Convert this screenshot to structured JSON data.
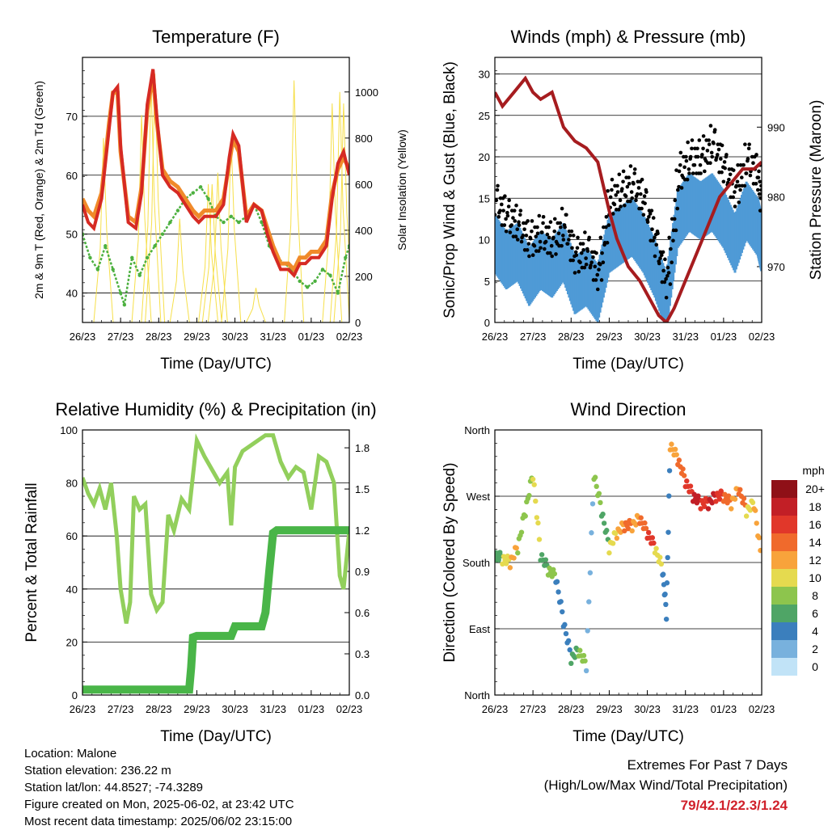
{
  "colors": {
    "temp2m": "#d62a23",
    "temp9m": "#f08a2a",
    "dewpoint": "#4cb03f",
    "solar": "#f6df4a",
    "wind": "#4f9ad6",
    "gust": "#000000",
    "pressure": "#a61c1f",
    "rh": "#92cf5c",
    "precip": "#49b548",
    "grid": "#000000"
  },
  "chart_data": [
    {
      "type": "line",
      "title": "Temperature (F)",
      "xlabel": "Time (Day/UTC)",
      "ylabel": "2m & 9m T (Red, Orange) & 2m Td (Green)",
      "ylabel_right": "Solar Insolation (Yellow)",
      "x_ticks": [
        "26/23",
        "27/23",
        "28/23",
        "29/23",
        "30/23",
        "31/23",
        "01/23",
        "02/23"
      ],
      "ylim": [
        35,
        80
      ],
      "y_ticks": [
        40,
        50,
        60,
        70
      ],
      "ylim_right": [
        0,
        1150
      ],
      "y_ticks_right": [
        0,
        200,
        400,
        600,
        800,
        1000
      ],
      "grid": true,
      "series": [
        {
          "name": "2m T",
          "color_key": "temp2m",
          "x": [
            0,
            0.15,
            0.3,
            0.5,
            0.7,
            0.8,
            0.92,
            1.0,
            1.2,
            1.4,
            1.55,
            1.7,
            1.85,
            1.95,
            2.1,
            2.3,
            2.5,
            2.7,
            2.9,
            3.05,
            3.2,
            3.5,
            3.7,
            3.85,
            3.95,
            4.1,
            4.3,
            4.5,
            4.7,
            4.85,
            5.0,
            5.2,
            5.4,
            5.55,
            5.7,
            5.85,
            6.0,
            6.2,
            6.4,
            6.55,
            6.7,
            6.85,
            7.0
          ],
          "y": [
            55,
            52,
            51,
            56,
            68,
            74,
            75,
            65,
            52,
            51,
            57,
            72,
            78,
            70,
            60,
            58,
            57,
            55,
            53,
            52,
            53,
            53,
            55,
            63,
            67,
            65,
            52,
            55,
            54,
            50,
            47,
            44,
            44,
            43,
            45,
            45,
            46,
            46,
            48,
            56,
            62,
            64,
            60
          ]
        },
        {
          "name": "9m T",
          "color_key": "temp9m",
          "x": [
            0,
            0.15,
            0.3,
            0.5,
            0.7,
            0.8,
            0.92,
            1.0,
            1.2,
            1.4,
            1.55,
            1.7,
            1.85,
            1.95,
            2.1,
            2.3,
            2.5,
            2.7,
            2.9,
            3.05,
            3.2,
            3.5,
            3.7,
            3.85,
            3.95,
            4.1,
            4.3,
            4.5,
            4.7,
            4.85,
            5.0,
            5.2,
            5.4,
            5.55,
            5.7,
            5.85,
            6.0,
            6.2,
            6.4,
            6.55,
            6.7,
            6.85,
            7.0
          ],
          "y": [
            56,
            54,
            53,
            57,
            69,
            74,
            74,
            64,
            53,
            52,
            58,
            71,
            77,
            69,
            61,
            59,
            58,
            56,
            54,
            53,
            54,
            54,
            56,
            62,
            66,
            64,
            53,
            55,
            54,
            51,
            48,
            45,
            45,
            44,
            46,
            46,
            47,
            47,
            49,
            57,
            61,
            63,
            61
          ]
        },
        {
          "name": "2m Td",
          "color_key": "dewpoint",
          "x": [
            0,
            0.2,
            0.4,
            0.6,
            0.8,
            1.0,
            1.1,
            1.3,
            1.5,
            1.7,
            1.9,
            2.1,
            2.3,
            2.5,
            2.7,
            2.9,
            3.1,
            3.3,
            3.5,
            3.7,
            3.9,
            4.1,
            4.3,
            4.5,
            4.7,
            4.9,
            5.1,
            5.3,
            5.5,
            5.7,
            5.9,
            6.1,
            6.3,
            6.5,
            6.7,
            6.9,
            7.0
          ],
          "y": [
            50,
            46,
            44,
            48,
            44,
            40,
            38,
            46,
            43,
            46,
            48,
            50,
            52,
            54,
            56,
            57,
            58,
            56,
            53,
            52,
            53,
            52,
            53,
            55,
            52,
            48,
            46,
            45,
            44,
            42,
            41,
            42,
            44,
            43,
            40,
            46,
            48
          ]
        },
        {
          "name": "Solar",
          "color_key": "solar",
          "axis": "right",
          "spikes": [
            {
              "x": 0.55,
              "y": 800
            },
            {
              "x": 1.55,
              "y": 900
            },
            {
              "x": 2.55,
              "y": 450
            },
            {
              "x": 3.55,
              "y": 650
            },
            {
              "x": 4.55,
              "y": 150
            },
            {
              "x": 5.55,
              "y": 1050
            },
            {
              "x": 6.55,
              "y": 950
            }
          ],
          "extra": [
            {
              "x": 1.8,
              "y": 1050
            },
            {
              "x": 1.9,
              "y": 1080
            },
            {
              "x": 3.4,
              "y": 600
            },
            {
              "x": 3.9,
              "y": 800
            },
            {
              "x": 3.3,
              "y": 600
            },
            {
              "x": 6.85,
              "y": 950
            },
            {
              "x": 6.75,
              "y": 1000
            }
          ]
        }
      ]
    },
    {
      "type": "scatter",
      "title": "Winds (mph) & Pressure (mb)",
      "xlabel": "Time (Day/UTC)",
      "ylabel": "Sonic/Prop Wind & Gust (Blue, Black)",
      "ylabel_right": "Station Pressure (Maroon)",
      "x_ticks": [
        "26/23",
        "27/23",
        "28/23",
        "29/23",
        "30/23",
        "31/23",
        "01/23",
        "02/23"
      ],
      "ylim": [
        0,
        32
      ],
      "y_ticks": [
        0,
        5,
        10,
        15,
        20,
        25,
        30
      ],
      "ylim_right": [
        962,
        1000
      ],
      "y_ticks_right": [
        970,
        980,
        990
      ],
      "grid": true,
      "series": [
        {
          "name": "Wind",
          "color_key": "wind",
          "x": [
            0,
            0.3,
            0.6,
            0.9,
            1.2,
            1.5,
            1.8,
            2.1,
            2.4,
            2.7,
            3.0,
            3.3,
            3.6,
            3.9,
            4.2,
            4.5,
            4.8,
            5.1,
            5.4,
            5.7,
            6.0,
            6.3,
            6.6,
            6.9,
            7.0
          ],
          "y": [
            10,
            8,
            9,
            6,
            8,
            7,
            9,
            5,
            6,
            4,
            10,
            11,
            12,
            10,
            7,
            3,
            13,
            15,
            14,
            15,
            13,
            10,
            14,
            12,
            10
          ]
        },
        {
          "name": "Gust",
          "color_key": "gust",
          "x": [
            0,
            0.3,
            0.6,
            0.9,
            1.2,
            1.5,
            1.8,
            2.1,
            2.4,
            2.7,
            3.0,
            3.3,
            3.6,
            3.9,
            4.2,
            4.5,
            4.8,
            5.1,
            5.4,
            5.7,
            6.0,
            6.3,
            6.6,
            6.9,
            7.0
          ],
          "y": [
            15,
            13,
            12,
            10,
            11,
            10,
            12,
            8,
            9,
            6,
            15,
            16,
            17,
            15,
            10,
            5,
            18,
            20,
            20,
            22,
            19,
            16,
            20,
            18,
            14
          ]
        },
        {
          "name": "Pressure",
          "color_key": "pressure",
          "axis": "right",
          "x": [
            0,
            0.2,
            0.5,
            0.8,
            1.0,
            1.2,
            1.5,
            1.8,
            2.1,
            2.4,
            2.7,
            3.0,
            3.2,
            3.5,
            3.8,
            4.1,
            4.3,
            4.5,
            4.7,
            5.0,
            5.3,
            5.6,
            5.9,
            6.2,
            6.5,
            6.8,
            7.0
          ],
          "y": [
            995,
            993,
            995,
            997,
            995,
            994,
            995,
            990,
            988,
            987,
            985,
            978,
            974,
            970,
            968,
            965,
            963,
            962,
            964,
            968,
            972,
            976,
            980,
            982,
            984,
            984,
            985
          ]
        }
      ]
    },
    {
      "type": "line",
      "title": "Relative Humidity (%) & Precipitation (in)",
      "xlabel": "Time (Day/UTC)",
      "ylabel": "Percent & Total Rainfall",
      "x_ticks": [
        "26/23",
        "27/23",
        "28/23",
        "29/23",
        "30/23",
        "31/23",
        "01/23",
        "02/23"
      ],
      "ylim": [
        0,
        100
      ],
      "y_ticks": [
        0,
        20,
        40,
        60,
        80,
        100
      ],
      "ylim_right": [
        0,
        1.93
      ],
      "y_ticks_right": [
        "0.0",
        "0.3",
        "0.6",
        "0.9",
        "1.2",
        "1.5",
        "1.8"
      ],
      "grid": true,
      "series": [
        {
          "name": "RH",
          "color_key": "rh",
          "x": [
            0,
            0.15,
            0.3,
            0.45,
            0.6,
            0.75,
            0.9,
            1.0,
            1.15,
            1.25,
            1.35,
            1.5,
            1.65,
            1.8,
            1.95,
            2.1,
            2.25,
            2.4,
            2.6,
            2.8,
            3.0,
            3.2,
            3.4,
            3.6,
            3.8,
            3.9,
            4.0,
            4.2,
            4.4,
            4.6,
            4.8,
            5.0,
            5.2,
            5.4,
            5.6,
            5.8,
            6.0,
            6.2,
            6.4,
            6.6,
            6.75,
            6.85,
            7.0
          ],
          "y": [
            82,
            76,
            72,
            78,
            70,
            80,
            60,
            40,
            27,
            35,
            75,
            70,
            72,
            38,
            32,
            35,
            68,
            62,
            74,
            70,
            96,
            90,
            85,
            80,
            84,
            64,
            86,
            92,
            94,
            96,
            98,
            98,
            88,
            82,
            86,
            84,
            70,
            90,
            88,
            80,
            45,
            40,
            62
          ]
        },
        {
          "name": "Precip",
          "color_key": "precip",
          "axis": "right",
          "x": [
            0,
            0.5,
            1.0,
            1.5,
            2.0,
            2.5,
            2.8,
            2.85,
            2.9,
            3.0,
            3.5,
            3.9,
            4.0,
            4.5,
            4.7,
            4.8,
            4.9,
            5.0,
            5.1,
            5.5,
            6.0,
            6.5,
            7.0
          ],
          "y": [
            0.04,
            0.04,
            0.04,
            0.04,
            0.04,
            0.04,
            0.04,
            0.2,
            0.42,
            0.43,
            0.43,
            0.43,
            0.5,
            0.5,
            0.5,
            0.6,
            0.9,
            1.18,
            1.2,
            1.2,
            1.2,
            1.2,
            1.2
          ]
        }
      ]
    },
    {
      "type": "scatter",
      "title": "Wind Direction",
      "xlabel": "Time (Day/UTC)",
      "ylabel": "Direction (Colored By Speed)",
      "x_ticks": [
        "26/23",
        "27/23",
        "28/23",
        "29/23",
        "30/23",
        "31/23",
        "01/23",
        "02/23"
      ],
      "ylim": [
        0,
        360
      ],
      "y_ticks": [
        "North",
        "East",
        "South",
        "West",
        "North"
      ],
      "grid": true,
      "colorbar": {
        "unit": "mph",
        "labels": [
          "20+",
          "18",
          "16",
          "14",
          "12",
          "10",
          "8",
          "6",
          "4",
          "2",
          "0"
        ],
        "colors": [
          "#8f1017",
          "#c21f26",
          "#e1372a",
          "#f06a2c",
          "#f8a33b",
          "#e5da4f",
          "#8dc54d",
          "#4fa566",
          "#3b7fbd",
          "#78b1dd",
          "#c1e3f7"
        ]
      },
      "series": [
        {
          "name": "Direction",
          "x": [
            0,
            0.2,
            0.4,
            0.6,
            0.8,
            1.0,
            1.2,
            1.4,
            1.6,
            1.8,
            2.0,
            2.2,
            2.4,
            2.6,
            2.8,
            3.0,
            3.2,
            3.4,
            3.6,
            3.8,
            4.0,
            4.2,
            4.4,
            4.5,
            4.6,
            4.8,
            5.0,
            5.2,
            5.4,
            5.6,
            5.8,
            6.0,
            6.2,
            6.4,
            6.6,
            6.8,
            7.0
          ],
          "y": [
            190,
            185,
            180,
            200,
            250,
            300,
            190,
            170,
            160,
            100,
            50,
            60,
            40,
            300,
            250,
            200,
            220,
            230,
            230,
            240,
            220,
            200,
            170,
            110,
            340,
            320,
            290,
            270,
            260,
            260,
            270,
            270,
            260,
            280,
            250,
            260,
            180
          ],
          "speed": [
            6,
            10,
            12,
            8,
            8,
            10,
            6,
            8,
            4,
            4,
            6,
            8,
            2,
            8,
            6,
            10,
            12,
            14,
            12,
            14,
            16,
            10,
            4,
            4,
            12,
            14,
            16,
            18,
            16,
            18,
            16,
            14,
            12,
            14,
            10,
            12,
            8
          ]
        }
      ]
    }
  ],
  "station": {
    "location": "Location: Malone",
    "elevation": "Station elevation: 236.22 m",
    "latlon": "Station lat/lon: 44.8527; -74.3289",
    "created": "Figure created on Mon, 2025-06-02, at 23:42 UTC",
    "recent": "Most recent data timestamp: 2025/06/02 23:15:00"
  },
  "extremes": {
    "title": "Extremes For Past 7 Days",
    "subtitle": "(High/Low/Max Wind/Total Precipitation)",
    "values": "79/42.1/22.3/1.24"
  }
}
